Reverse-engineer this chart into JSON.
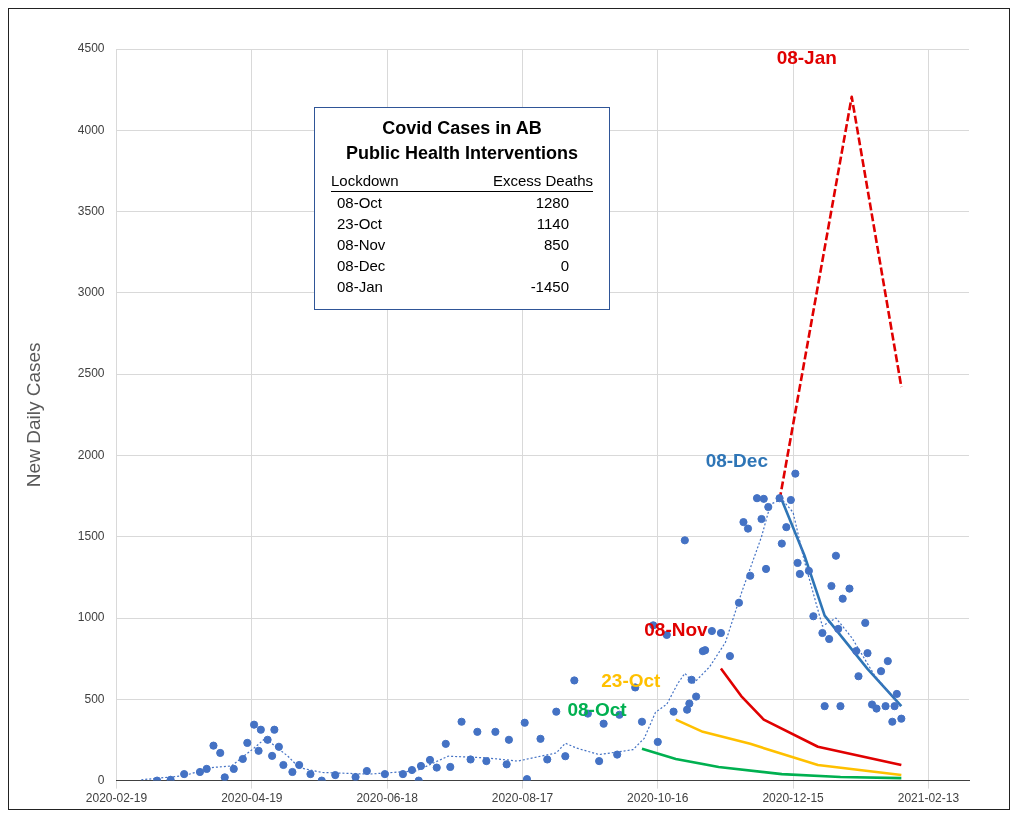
{
  "chart_data": {
    "type": "scatter",
    "title": "Covid Cases in AB",
    "subtitle": "Public Health Interventions",
    "ylabel": "New Daily Cases",
    "annotations": [
      "Lockdown",
      "Excess Deaths",
      "08-Oct",
      "1280",
      "23-Oct",
      "1140",
      "08-Nov",
      "850",
      "08-Dec",
      "0",
      "08-Jan",
      "-1450"
    ],
    "xlim": [
      "2020-02-19",
      "2021-03-03"
    ],
    "xticks": [
      "2020-02-19",
      "2020-04-19",
      "2020-06-18",
      "2020-08-17",
      "2020-10-16",
      "2020-12-15",
      "2021-02-13"
    ],
    "ylim": [
      0,
      4500
    ],
    "yticks": [
      0,
      500,
      1000,
      1500,
      2000,
      2500,
      3000,
      3500,
      4000,
      4500
    ],
    "grid": true,
    "series": [
      {
        "marker": "circle",
        "color": "#4472c4",
        "x": [
          "2020-03-08",
          "2020-03-14",
          "2020-03-20",
          "2020-03-27",
          "2020-03-30",
          "2020-04-02",
          "2020-04-05",
          "2020-04-07",
          "2020-04-11",
          "2020-04-15",
          "2020-04-17",
          "2020-04-20",
          "2020-04-22",
          "2020-04-23",
          "2020-04-26",
          "2020-04-28",
          "2020-04-29",
          "2020-05-01",
          "2020-05-03",
          "2020-05-07",
          "2020-05-10",
          "2020-05-15",
          "2020-05-20",
          "2020-05-26",
          "2020-06-04",
          "2020-06-09",
          "2020-06-17",
          "2020-06-25",
          "2020-06-29",
          "2020-07-02",
          "2020-07-03",
          "2020-07-07",
          "2020-07-10",
          "2020-07-14",
          "2020-07-16",
          "2020-07-21",
          "2020-07-25",
          "2020-07-28",
          "2020-08-01",
          "2020-08-05",
          "2020-08-10",
          "2020-08-11",
          "2020-08-18",
          "2020-08-19",
          "2020-08-25",
          "2020-08-28",
          "2020-09-01",
          "2020-09-05",
          "2020-09-09",
          "2020-09-15",
          "2020-09-20",
          "2020-09-22",
          "2020-09-28",
          "2020-09-29",
          "2020-10-06",
          "2020-10-09",
          "2020-10-14",
          "2020-10-16",
          "2020-10-20",
          "2020-10-23",
          "2020-10-28",
          "2020-10-29",
          "2020-10-30",
          "2020-10-31",
          "2020-11-02",
          "2020-11-05",
          "2020-11-06",
          "2020-11-09",
          "2020-11-13",
          "2020-11-17",
          "2020-11-21",
          "2020-11-23",
          "2020-11-25",
          "2020-11-26",
          "2020-11-29",
          "2020-12-01",
          "2020-12-02",
          "2020-12-03",
          "2020-12-04",
          "2020-12-09",
          "2020-12-10",
          "2020-12-12",
          "2020-12-14",
          "2020-12-16",
          "2020-12-17",
          "2020-12-18",
          "2020-12-22",
          "2020-12-24",
          "2020-12-28",
          "2020-12-29",
          "2020-12-31",
          "2021-01-01",
          "2021-01-03",
          "2021-01-04",
          "2021-01-05",
          "2021-01-06",
          "2021-01-09",
          "2021-01-12",
          "2021-01-13",
          "2021-01-16",
          "2021-01-17",
          "2021-01-19",
          "2021-01-21",
          "2021-01-23",
          "2021-01-25",
          "2021-01-26",
          "2021-01-28",
          "2021-01-29",
          "2021-01-30",
          "2021-02-01"
        ],
        "values": [
          0,
          5,
          40,
          53,
          72,
          215,
          170,
          20,
          72,
          133,
          232,
          344,
          183,
          313,
          251,
          152,
          313,
          208,
          96,
          53,
          96,
          40,
          0,
          34,
          22,
          59,
          40,
          40,
          65,
          0,
          90,
          127,
          80,
          226,
          84,
          362,
          130,
          300,
          120,
          300,
          100,
          251,
          356,
          9,
          257,
          130,
          424,
          150,
          616,
          412,
          120,
          350,
          160,
          405,
          573,
          362,
          955,
          238,
          896,
          424,
          1478,
          436,
          474,
          620,
          517,
          796,
          802,
          920,
          908,
          766,
          1094,
          1590,
          1550,
          1260,
          1737,
          1609,
          1733,
          1302,
          1683,
          1737,
          1458,
          1559,
          1726,
          1888,
          1339,
          1271,
          1290,
          1011,
          908,
          458,
          871,
          1197,
          1383,
          933,
          458,
          1119,
          1181,
          797,
          642,
          970,
          784,
          468,
          443,
          673,
          458,
          735,
          362,
          458,
          533,
          381
        ]
      },
      {
        "type": "line",
        "marker": "none",
        "line_style": "dotted",
        "color": "#4472c4",
        "x": [
          "2020-03-01",
          "2020-03-20",
          "2020-04-01",
          "2020-04-10",
          "2020-04-20",
          "2020-04-25",
          "2020-05-05",
          "2020-05-10",
          "2020-05-20",
          "2020-06-10",
          "2020-07-01",
          "2020-07-15",
          "2020-08-01",
          "2020-08-15",
          "2020-08-25",
          "2020-09-01",
          "2020-09-05",
          "2020-09-10",
          "2020-09-20",
          "2020-09-30",
          "2020-10-05",
          "2020-10-10",
          "2020-10-15",
          "2020-10-20",
          "2020-10-25",
          "2020-10-28",
          "2020-11-01",
          "2020-11-08",
          "2020-11-15",
          "2020-11-22",
          "2020-12-01",
          "2020-12-05",
          "2020-12-10",
          "2020-12-15",
          "2020-12-20",
          "2020-12-28",
          "2021-01-03",
          "2021-01-10",
          "2021-01-20",
          "2021-02-01"
        ],
        "values": [
          5,
          30,
          80,
          90,
          200,
          260,
          150,
          80,
          50,
          40,
          60,
          150,
          140,
          120,
          150,
          170,
          230,
          200,
          160,
          180,
          190,
          260,
          420,
          470,
          600,
          660,
          600,
          700,
          850,
          1150,
          1500,
          1700,
          1730,
          1650,
          1350,
          950,
          1000,
          880,
          650,
          450
        ]
      },
      {
        "type": "line",
        "name": "08-Oct",
        "marker": "none",
        "line_style": "solid",
        "color": "#00b050",
        "x": [
          "2020-10-09",
          "2020-10-24",
          "2020-11-12",
          "2020-12-10",
          "2021-01-05",
          "2021-02-01"
        ],
        "values": [
          196,
          133,
          84,
          40,
          22,
          15
        ]
      },
      {
        "type": "line",
        "name": "23-Oct",
        "marker": "none",
        "line_style": "solid",
        "color": "#ffc000",
        "x": [
          "2020-10-24",
          "2020-11-05",
          "2020-11-26",
          "2020-12-26",
          "2021-02-01"
        ],
        "values": [
          375,
          300,
          226,
          96,
          34
        ]
      },
      {
        "type": "line",
        "name": "08-Nov",
        "marker": "none",
        "line_style": "solid",
        "color": "#e00000",
        "x": [
          "2020-11-13",
          "2020-11-22",
          "2020-12-02",
          "2020-12-26",
          "2021-02-01"
        ],
        "values": [
          690,
          520,
          375,
          208,
          96
        ]
      },
      {
        "type": "line",
        "name": "08-Dec",
        "marker": "none",
        "line_style": "solid",
        "color": "#2e75b6",
        "x": [
          "2020-12-10",
          "2020-12-20",
          "2020-12-29",
          "2021-01-17",
          "2021-02-01"
        ],
        "values": [
          1726,
          1386,
          1015,
          687,
          458
        ]
      },
      {
        "type": "line",
        "name": "08-Jan",
        "marker": "none",
        "line_style": "dashed",
        "color": "#e00000",
        "x": [
          "2020-12-09",
          "2021-01-10",
          "2021-02-01"
        ],
        "values": [
          1725,
          4206,
          2421
        ]
      }
    ]
  }
}
